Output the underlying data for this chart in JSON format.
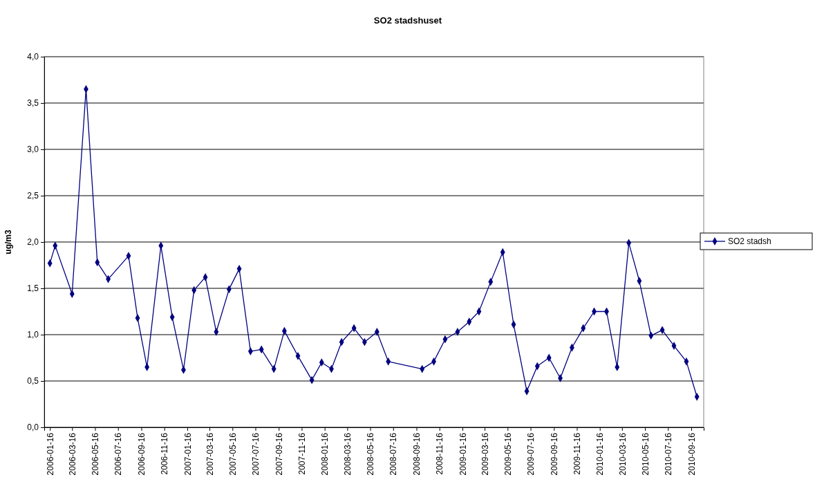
{
  "chart_data": {
    "type": "line",
    "title": "SO2 stadshuset",
    "ylabel": "ug/m3",
    "xlim": [
      "2006-01-01",
      "2010-10-19"
    ],
    "xticks": [
      "2006-01-16",
      "2006-03-16",
      "2006-05-16",
      "2006-07-16",
      "2006-09-16",
      "2006-11-16",
      "2007-01-16",
      "2007-03-16",
      "2007-05-16",
      "2007-07-16",
      "2007-09-16",
      "2007-11-16",
      "2008-01-16",
      "2008-03-16",
      "2008-05-16",
      "2008-07-16",
      "2008-09-16",
      "2008-11-16",
      "2009-01-16",
      "2009-03-16",
      "2009-05-16",
      "2009-07-16",
      "2009-09-16",
      "2009-11-16",
      "2010-01-16",
      "2010-03-16",
      "2010-05-16",
      "2010-07-16",
      "2010-09-16"
    ],
    "ylim": [
      0,
      4
    ],
    "yticks": [
      {
        "value": 0,
        "label": "0,0"
      },
      {
        "value": 0.5,
        "label": "0,5"
      },
      {
        "value": 1,
        "label": "1,0"
      },
      {
        "value": 1.5,
        "label": "1,5"
      },
      {
        "value": 2,
        "label": "2,0"
      },
      {
        "value": 2.5,
        "label": "2,5"
      },
      {
        "value": 3,
        "label": "3,0"
      },
      {
        "value": 3.5,
        "label": "3,5"
      },
      {
        "value": 4,
        "label": "4,0"
      }
    ],
    "grid": "y",
    "legend": "right",
    "marker": "diamond",
    "line_style": "solid",
    "series": [
      {
        "name": "SO2 stadsh",
        "color": "#000080",
        "x": [
          "2006-01-16",
          "2006-01-30",
          "2006-03-16",
          "2006-04-22",
          "2006-05-22",
          "2006-06-20",
          "2006-08-13",
          "2006-09-06",
          "2006-10-01",
          "2006-11-07",
          "2006-12-07",
          "2007-01-06",
          "2007-02-03",
          "2007-03-05",
          "2007-04-03",
          "2007-05-07",
          "2007-06-03",
          "2007-07-03",
          "2007-08-01",
          "2007-09-03",
          "2007-10-01",
          "2007-11-06",
          "2007-12-13",
          "2008-01-08",
          "2008-02-03",
          "2008-03-01",
          "2008-04-03",
          "2008-05-01",
          "2008-06-03",
          "2008-07-03",
          "2008-10-01",
          "2008-11-01",
          "2008-12-01",
          "2009-01-03",
          "2009-02-03",
          "2009-03-01",
          "2009-04-01",
          "2009-05-03",
          "2009-06-01",
          "2009-07-06",
          "2009-08-03",
          "2009-09-03",
          "2009-10-03",
          "2009-11-03",
          "2009-12-03",
          "2010-01-01",
          "2010-02-03",
          "2010-03-03",
          "2010-04-03",
          "2010-05-01",
          "2010-06-01",
          "2010-07-01",
          "2010-08-01",
          "2010-09-03",
          "2010-10-01"
        ],
        "values": [
          1.77,
          1.96,
          1.44,
          3.65,
          1.78,
          1.6,
          1.85,
          1.18,
          0.65,
          1.96,
          1.19,
          0.62,
          1.48,
          1.62,
          1.03,
          1.49,
          1.71,
          0.82,
          0.84,
          0.63,
          1.04,
          0.77,
          0.51,
          0.7,
          0.63,
          0.92,
          1.07,
          0.92,
          1.03,
          0.71,
          0.63,
          0.71,
          0.95,
          1.03,
          1.14,
          1.25,
          1.57,
          1.89,
          1.11,
          0.39,
          0.66,
          0.75,
          0.53,
          0.86,
          1.07,
          1.25,
          1.25,
          0.65,
          1.99,
          1.58,
          0.99,
          1.05,
          0.88,
          0.71,
          0.33
        ]
      }
    ]
  }
}
